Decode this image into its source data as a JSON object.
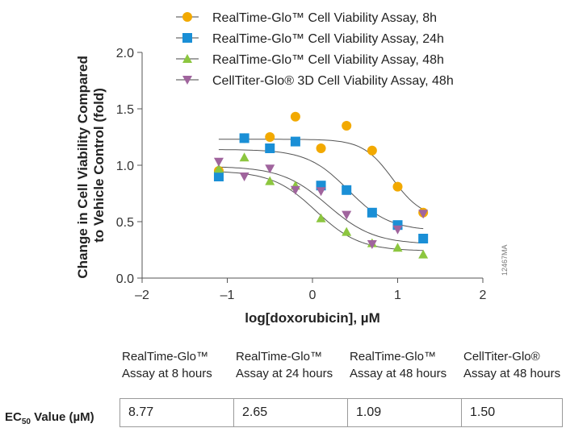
{
  "chart_data": {
    "type": "scatter",
    "xlabel": "log[doxorubicin], µM",
    "ylabel_lines": [
      "Change in Cell Viability Compared",
      "to Vehicle Control (fold)"
    ],
    "xlim": [
      -2,
      2
    ],
    "ylim": [
      0,
      2.0
    ],
    "x_ticks": [
      -2,
      -1,
      0,
      1,
      2
    ],
    "x_tick_labels": [
      "–2",
      "–1",
      "0",
      "1",
      "2"
    ],
    "y_ticks": [
      0,
      0.5,
      1.0,
      1.5,
      2.0
    ],
    "y_tick_labels": [
      "0.0",
      "0.5",
      "1.0",
      "1.5",
      "2.0"
    ],
    "grid": false,
    "legend_position": "top",
    "fit": "sigmoidal dose-response",
    "series": [
      {
        "name": "RealTime-Glo™ Cell Viability Assay, 8h",
        "marker": "circle",
        "color": "#f2a900",
        "x": [
          -1.1,
          -0.8,
          -0.5,
          -0.2,
          0.1,
          0.4,
          0.7,
          1.0,
          1.3
        ],
        "y": [
          0.95,
          1.24,
          1.25,
          1.43,
          1.15,
          1.35,
          1.13,
          0.81,
          0.58
        ],
        "fit_params": {
          "top": 1.23,
          "bottom": 0.53,
          "log_ec50": 0.94,
          "hill": 2.5
        }
      },
      {
        "name": "RealTime-Glo™ Cell Viability Assay, 24h",
        "marker": "square",
        "color": "#1a8fd6",
        "x": [
          -1.1,
          -0.8,
          -0.5,
          -0.2,
          0.1,
          0.4,
          0.7,
          1.0,
          1.3
        ],
        "y": [
          0.9,
          1.24,
          1.15,
          1.21,
          0.82,
          0.78,
          0.58,
          0.47,
          0.35
        ],
        "fit_params": {
          "top": 1.14,
          "bottom": 0.42,
          "log_ec50": 0.42,
          "hill": 1.8
        }
      },
      {
        "name": "RealTime-Glo™ Cell Viability Assay, 48h",
        "marker": "triangle-up",
        "color": "#8cc63f",
        "x": [
          -1.1,
          -0.8,
          -0.5,
          -0.2,
          0.1,
          0.4,
          0.7,
          1.0,
          1.3
        ],
        "y": [
          0.97,
          1.07,
          0.86,
          0.82,
          0.53,
          0.41,
          0.31,
          0.27,
          0.21
        ],
        "fit_params": {
          "top": 0.95,
          "bottom": 0.24,
          "log_ec50": 0.04,
          "hill": 1.7
        }
      },
      {
        "name": "CellTiter-Glo® 3D Cell Viability Assay, 48h",
        "marker": "triangle-down",
        "color": "#a0649d",
        "x": [
          -1.1,
          -0.8,
          -0.5,
          -0.2,
          0.1,
          0.4,
          0.7,
          1.0,
          1.3
        ],
        "y": [
          1.03,
          0.9,
          0.97,
          0.78,
          0.77,
          0.56,
          0.3,
          0.43,
          0.57
        ],
        "fit_params": {
          "top": 0.99,
          "bottom": 0.3,
          "log_ec50": 0.18,
          "hill": 1.6
        }
      }
    ]
  },
  "watermark": "12467MA",
  "ec50_table": {
    "columns": [
      [
        "RealTime-Glo™",
        "Assay at 8 hours"
      ],
      [
        "RealTime-Glo™",
        "Assay at 24 hours"
      ],
      [
        "RealTime-Glo™",
        "Assay at 48 hours"
      ],
      [
        "CellTiter-Glo®",
        "Assay at 48 hours"
      ]
    ],
    "row_label_prefix": "EC",
    "row_label_sub": "50",
    "row_label_suffix": " Value (µM)",
    "values": [
      "8.77",
      "2.65",
      "1.09",
      "1.50"
    ]
  }
}
